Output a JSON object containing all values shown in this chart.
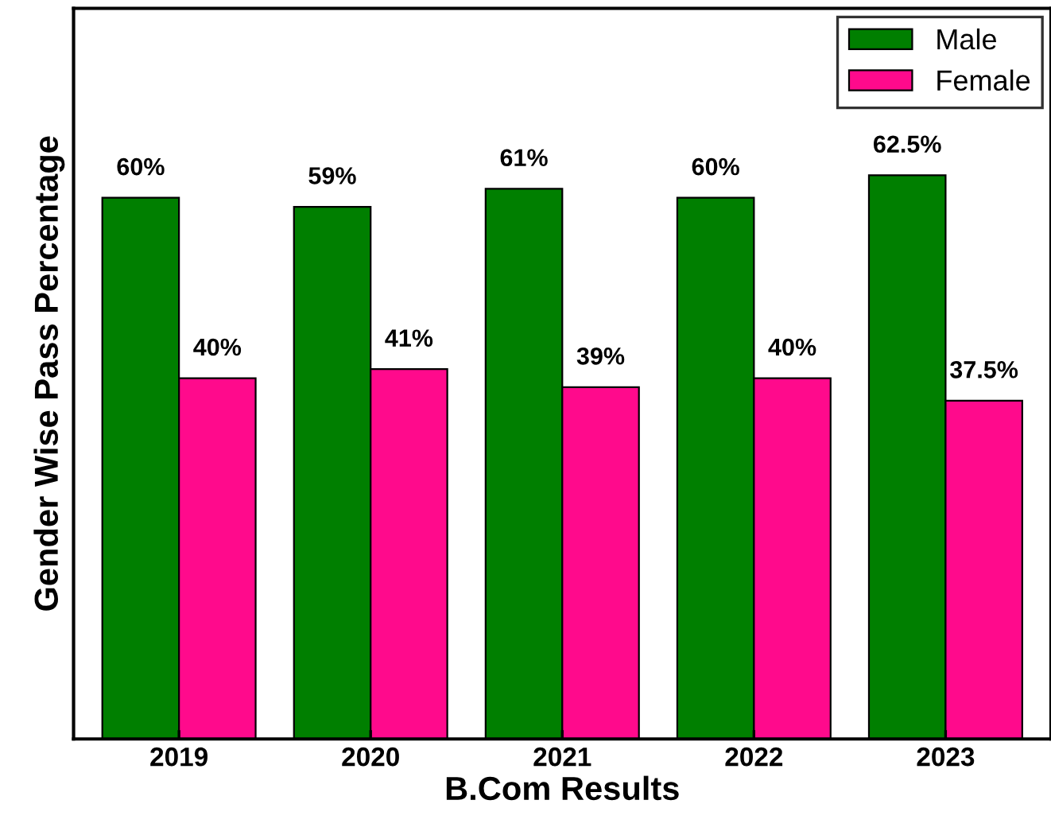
{
  "chart_data": {
    "type": "bar",
    "xlabel": "B.Com Results",
    "ylabel": "Gender Wise Pass Percentage",
    "categories": [
      "2019",
      "2020",
      "2021",
      "2022",
      "2023"
    ],
    "series": [
      {
        "name": "Male",
        "color": "#007f00",
        "values": [
          60,
          59,
          61,
          60,
          62.5
        ],
        "value_labels": [
          "60%",
          "59%",
          "61%",
          "60%",
          "62.5%"
        ]
      },
      {
        "name": "Female",
        "color": "#ff0a8c",
        "values": [
          40,
          41,
          39,
          40,
          37.5
        ],
        "value_labels": [
          "40%",
          "41%",
          "39%",
          "40%",
          "37.5%"
        ]
      }
    ],
    "ylim": [
      0,
      81
    ],
    "tick_labels": "x",
    "legend": "top right",
    "grid": false
  }
}
